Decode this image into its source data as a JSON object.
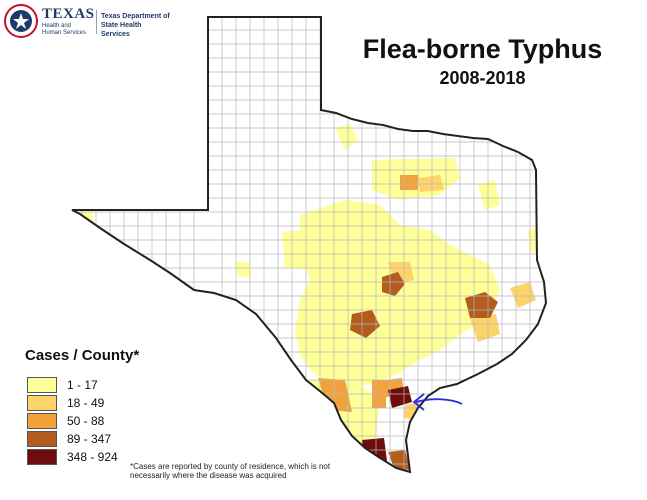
{
  "header": {
    "logo_texas": "TEXAS",
    "logo_hhs": "Health and Human Services",
    "logo_dshs": "Texas Department of State Health Services",
    "title": "Flea-borne Typhus",
    "subtitle": "2008-2018"
  },
  "legend": {
    "title": "Cases / County*",
    "items": [
      {
        "label": "1 - 17",
        "color": "#ffff99"
      },
      {
        "label": "18 - 49",
        "color": "#fed46a"
      },
      {
        "label": "50 - 88",
        "color": "#f2a23a"
      },
      {
        "label": "89 - 347",
        "color": "#b35c1e"
      },
      {
        "label": "348 - 924",
        "color": "#6e0d0d"
      }
    ]
  },
  "footnote": "*Cases are reported by county of residence, which is not necessarily where the disease was acquired",
  "colors": {
    "border": "#222222",
    "county_line": "#b8b8b8",
    "annotation": "#2a2ae0"
  }
}
